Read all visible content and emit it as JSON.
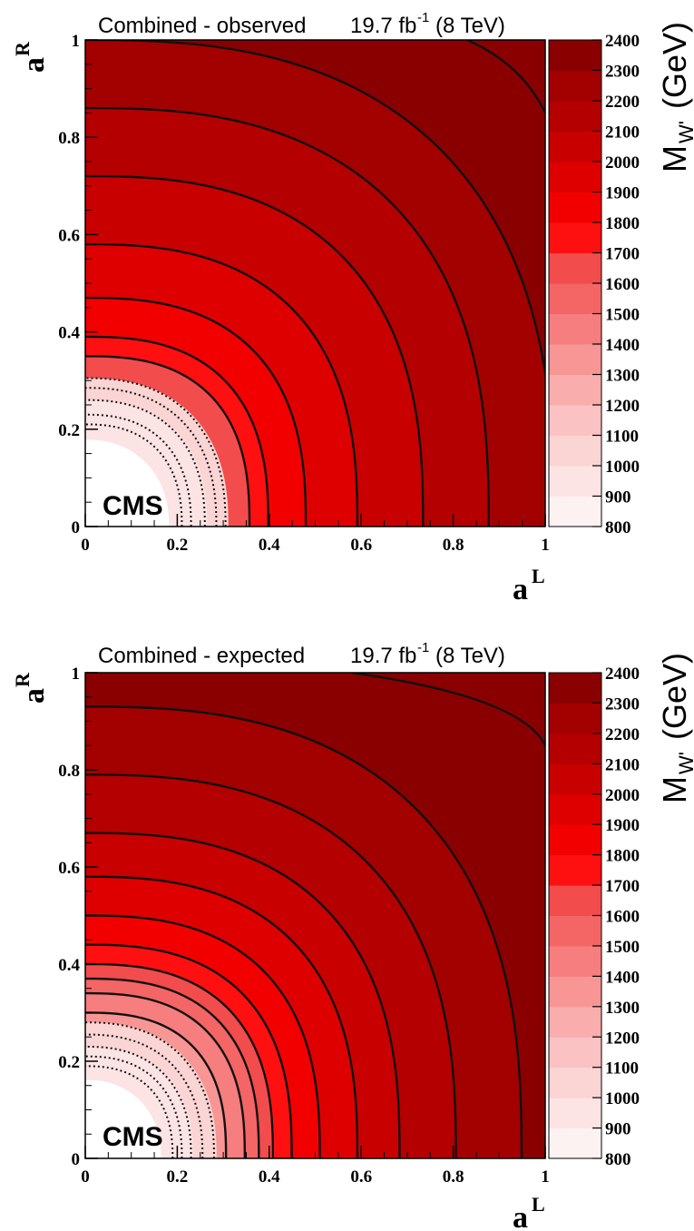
{
  "chart_data": [
    {
      "type": "heatmap",
      "title_main": "Combined - observed",
      "title_lumi": "19.7 fb",
      "title_sup": "-1",
      "title_energy": "(8 TeV)",
      "xlabel": "a",
      "xlabel_sup": "L",
      "ylabel": "a",
      "ylabel_sup": "R",
      "zlabel": "M",
      "zlabel_sub": "W'",
      "zlabel_unit": "(GeV)",
      "xlim": [
        0,
        1
      ],
      "ylim": [
        0,
        1
      ],
      "zlim": [
        800,
        2400
      ],
      "x_ticks": [
        "0",
        "0.2",
        "0.4",
        "0.6",
        "0.8",
        "1"
      ],
      "y_ticks": [
        "0",
        "0.2",
        "0.4",
        "0.6",
        "0.8",
        "1"
      ],
      "z_ticks": [
        "800",
        "900",
        "1000",
        "1100",
        "1200",
        "1300",
        "1400",
        "1500",
        "1600",
        "1700",
        "1800",
        "1900",
        "2000",
        "2100",
        "2200",
        "2300",
        "2400"
      ],
      "grid": false,
      "annotation": "CMS",
      "solid_contour_radii_at_zero": [
        0.35,
        0.39,
        0.47,
        0.58,
        0.72,
        0.86,
        1.0
      ],
      "solid_contour_levels_gev": [
        1200,
        1300,
        1400,
        1500,
        1600,
        1700,
        1800,
        1900,
        2000,
        2100,
        2200
      ],
      "dotted_contour_radii": [
        0.305,
        0.285,
        0.26,
        0.23,
        0.21
      ],
      "top_right_contour_start_x": 0.83
    },
    {
      "type": "heatmap",
      "title_main": "Combined - expected",
      "title_lumi": "19.7 fb",
      "title_sup": "-1",
      "title_energy": "(8 TeV)",
      "xlabel": "a",
      "xlabel_sup": "L",
      "ylabel": "a",
      "ylabel_sup": "R",
      "zlabel": "M",
      "zlabel_sub": "W'",
      "zlabel_unit": "(GeV)",
      "xlim": [
        0,
        1
      ],
      "ylim": [
        0,
        1
      ],
      "zlim": [
        800,
        2400
      ],
      "x_ticks": [
        "0",
        "0.2",
        "0.4",
        "0.6",
        "0.8",
        "1"
      ],
      "y_ticks": [
        "0",
        "0.2",
        "0.4",
        "0.6",
        "0.8",
        "1"
      ],
      "z_ticks": [
        "800",
        "900",
        "1000",
        "1100",
        "1200",
        "1300",
        "1400",
        "1500",
        "1600",
        "1700",
        "1800",
        "1900",
        "2000",
        "2100",
        "2200",
        "2300",
        "2400"
      ],
      "grid": false,
      "annotation": "CMS",
      "solid_contour_radii_at_zero": [
        0.3,
        0.34,
        0.37,
        0.4,
        0.44,
        0.5,
        0.58,
        0.67,
        0.79,
        0.93
      ],
      "solid_contour_levels_gev": [
        1300,
        1400,
        1500,
        1600,
        1700,
        1800,
        1900,
        2000,
        2100,
        2200,
        2300
      ],
      "dotted_contour_radii": [
        0.28,
        0.255,
        0.23,
        0.21,
        0.19
      ],
      "top_right_contour_start_x": 0.58
    }
  ],
  "colors": {
    "palette_800_to_2400": [
      "#fdf2f2",
      "#fce4e4",
      "#fbd4d4",
      "#fac2c2",
      "#f9adad",
      "#f89696",
      "#f67e7e",
      "#f46565",
      "#f24c4c",
      "#ff1010",
      "#f20000",
      "#de0000",
      "#c90000",
      "#b40000",
      "#a30000",
      "#8a0000"
    ],
    "contour_line": "#111111"
  }
}
